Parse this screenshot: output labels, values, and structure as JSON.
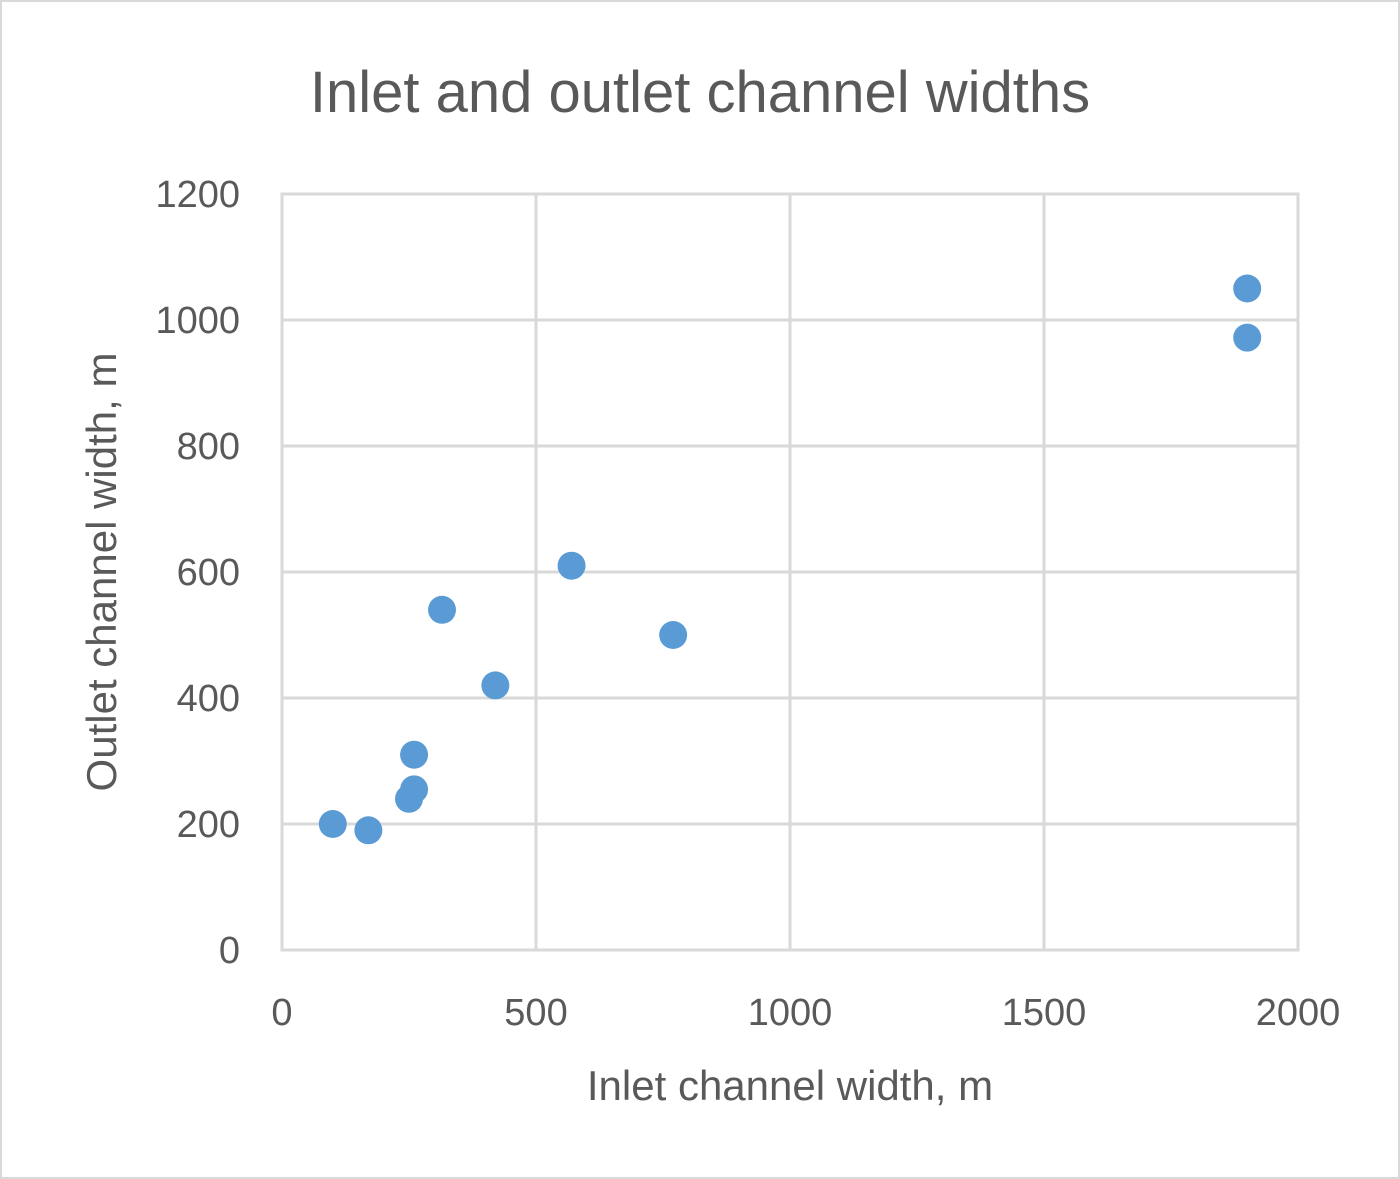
{
  "chart_data": {
    "type": "scatter",
    "title": "Inlet and outlet channel widths",
    "xlabel": "Inlet channel width, m",
    "ylabel": "Outlet channel width, m",
    "xlim": [
      0,
      2000
    ],
    "ylim": [
      0,
      1200
    ],
    "x_ticks": [
      "0",
      "500",
      "1000",
      "1500",
      "2000"
    ],
    "y_ticks": [
      "0",
      "200",
      "400",
      "600",
      "800",
      "1000",
      "1200"
    ],
    "grid": true,
    "legend": "none",
    "marker_color": "#5b9bd5",
    "series": [
      {
        "points": [
          {
            "x": 100,
            "y": 200
          },
          {
            "x": 170,
            "y": 190
          },
          {
            "x": 250,
            "y": 240
          },
          {
            "x": 260,
            "y": 255
          },
          {
            "x": 260,
            "y": 310
          },
          {
            "x": 315,
            "y": 540
          },
          {
            "x": 420,
            "y": 420
          },
          {
            "x": 570,
            "y": 610
          },
          {
            "x": 770,
            "y": 500
          },
          {
            "x": 1900,
            "y": 1050
          },
          {
            "x": 1900,
            "y": 972
          }
        ]
      }
    ]
  }
}
